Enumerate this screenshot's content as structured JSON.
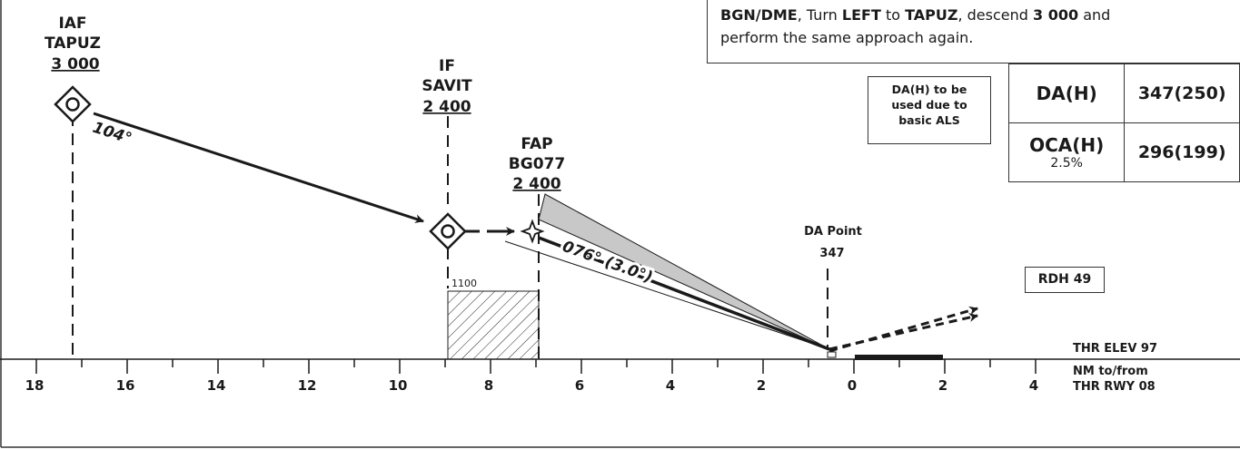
{
  "missed_approach": {
    "l1_a": "BGN/DME",
    "l1_b": ", Turn ",
    "l1_c": "LEFT",
    "l1_d": " to ",
    "l1_e": "TAPUZ",
    "l1_f": ", descend ",
    "l1_g": "3 000",
    "l1_h": " and",
    "l2": "perform the same approach again."
  },
  "da_note": {
    "line1": "DA(H) to be",
    "line2": "used due to",
    "line3": "basic ALS"
  },
  "minima": {
    "da_label": "DA(H)",
    "da_value": "347(250)",
    "oca_label": "OCA(H)",
    "oca_sub": "2.5%",
    "oca_value": "296(199)"
  },
  "fixes": {
    "iaf": {
      "role": "IAF",
      "name": "TAPUZ",
      "alt": "3 000",
      "track": "104°"
    },
    "if": {
      "role": "IF",
      "name": "SAVIT",
      "alt": "2 400"
    },
    "fap": {
      "role": "FAP",
      "name": "BG077",
      "alt": "2 400",
      "track": "076° (3.0°)"
    },
    "da_point": {
      "label": "DA Point",
      "value": "347"
    }
  },
  "obstacle": {
    "label": "1100"
  },
  "rdh": "RDH 49",
  "thr_elev": "THR ELEV 97",
  "axis": {
    "caption1": "NM to/from",
    "caption2": "THR RWY 08",
    "labels": [
      "18",
      "16",
      "14",
      "12",
      "10",
      "8",
      "6",
      "4",
      "2",
      "0",
      "2",
      "4"
    ]
  },
  "colors": {
    "line": "#1a1a1a",
    "obstacle_area": "#c8c8c8"
  }
}
